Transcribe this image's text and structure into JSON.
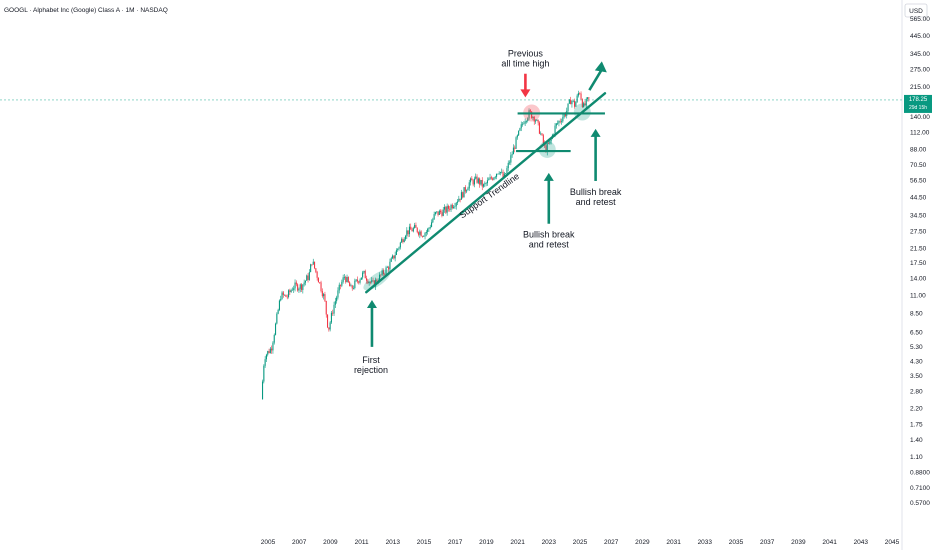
{
  "header": {
    "symbol_title": "GOOGL · Alphabet Inc (Google) Class A · 1M · NASDAQ",
    "currency_label": "USD"
  },
  "price_label": {
    "price": "178.25",
    "countdown": "29d 15h"
  },
  "colors": {
    "up": "#089981",
    "down": "#f23645",
    "annotation_green": "#0f8a70",
    "annotation_red": "#f23645",
    "price_line": "#4fbda8"
  },
  "chart_data": {
    "type": "candlestick",
    "title": "GOOGL · Alphabet Inc (Google) Class A · 1M · NASDAQ",
    "yscale": "log",
    "ylim": [
      0.5,
      1000
    ],
    "xlim": [
      2004.0,
      2046.0
    ],
    "y_ticks": [
      "565.00",
      "445.00",
      "345.00",
      "275.00",
      "215.00",
      "140.00",
      "112.00",
      "88.00",
      "70.50",
      "56.50",
      "44.50",
      "34.50",
      "27.50",
      "21.50",
      "17.50",
      "14.00",
      "11.00",
      "8.50",
      "6.50",
      "5.30",
      "4.30",
      "3.50",
      "2.80",
      "2.20",
      "1.75",
      "1.40",
      "1.10",
      "0.8800",
      "0.7100",
      "0.5700"
    ],
    "x_ticks": [
      "2005",
      "2007",
      "2009",
      "2011",
      "2013",
      "2015",
      "2017",
      "2019",
      "2021",
      "2023",
      "2025",
      "2027",
      "2029",
      "2031",
      "2033",
      "2035",
      "2037",
      "2039",
      "2041",
      "2043",
      "2045"
    ],
    "price_path": [
      [
        2004.65,
        2.5
      ],
      [
        2004.85,
        4.6
      ],
      [
        2005.3,
        5.2
      ],
      [
        2005.6,
        7.5
      ],
      [
        2005.9,
        11.0
      ],
      [
        2006.3,
        10.8
      ],
      [
        2006.7,
        12.5
      ],
      [
        2007.2,
        12.5
      ],
      [
        2007.7,
        14.5
      ],
      [
        2007.9,
        18.0
      ],
      [
        2008.3,
        14.0
      ],
      [
        2008.7,
        10.5
      ],
      [
        2008.95,
        6.7
      ],
      [
        2009.3,
        9.5
      ],
      [
        2009.7,
        12.5
      ],
      [
        2010.0,
        14.5
      ],
      [
        2010.4,
        12.0
      ],
      [
        2010.8,
        13.5
      ],
      [
        2011.2,
        15.0
      ],
      [
        2011.5,
        13.8
      ],
      [
        2011.8,
        12.8
      ],
      [
        2012.3,
        14.5
      ],
      [
        2012.8,
        16.5
      ],
      [
        2013.3,
        20.5
      ],
      [
        2013.9,
        27.0
      ],
      [
        2014.5,
        28.5
      ],
      [
        2015.0,
        26.5
      ],
      [
        2015.3,
        27.5
      ],
      [
        2015.8,
        35.0
      ],
      [
        2016.5,
        37.0
      ],
      [
        2017.0,
        41.0
      ],
      [
        2017.5,
        46.0
      ],
      [
        2018.0,
        55.0
      ],
      [
        2018.5,
        57.0
      ],
      [
        2018.9,
        52.0
      ],
      [
        2019.3,
        57.0
      ],
      [
        2019.9,
        66.0
      ],
      [
        2020.2,
        58.0
      ],
      [
        2020.6,
        76.0
      ],
      [
        2021.0,
        100.0
      ],
      [
        2021.5,
        135.0
      ],
      [
        2021.85,
        148.0
      ],
      [
        2022.2,
        138.0
      ],
      [
        2022.5,
        115.0
      ],
      [
        2022.85,
        88.0
      ],
      [
        2023.15,
        96.0
      ],
      [
        2023.5,
        122.0
      ],
      [
        2023.9,
        138.0
      ],
      [
        2024.2,
        150.0
      ],
      [
        2024.5,
        180.0
      ],
      [
        2024.75,
        165.0
      ],
      [
        2025.05,
        205.0
      ],
      [
        2025.3,
        160.0
      ],
      [
        2025.6,
        178.25
      ]
    ],
    "annotations": [
      {
        "text": "First rejection",
        "lines": [
          "First",
          "rejection"
        ],
        "x": 2011.6,
        "y": 4.2,
        "arrow": "up"
      },
      {
        "text": "Previous all time high",
        "lines": [
          "Previous",
          "all time high"
        ],
        "x": 2021.5,
        "y": 330,
        "arrow": "down"
      },
      {
        "text": "Bullish break and retest",
        "lines": [
          "Bullish break",
          "and retest"
        ],
        "x": 2023.0,
        "y": 25,
        "arrow": "up"
      },
      {
        "text": "Bullish break and retest",
        "lines": [
          "Bullish break",
          "and retest"
        ],
        "x": 2026.0,
        "y": 46,
        "arrow": "up"
      },
      {
        "text": "Support Trendline",
        "lines": [
          "Support Trendline"
        ],
        "x": 2019.3,
        "y": 44,
        "arrow": "none"
      }
    ],
    "trendline": {
      "from": [
        2011.3,
        11.5
      ],
      "to": [
        2026.6,
        196
      ]
    },
    "horizontal_levels": [
      {
        "value": 147,
        "from": 2021.0,
        "to": 2026.6
      },
      {
        "value": 86,
        "from": 2020.9,
        "to": 2024.4
      }
    ],
    "highlight_circles": [
      {
        "x": 2021.9,
        "y": 148,
        "color": "red"
      },
      {
        "x": 2022.9,
        "y": 88,
        "color": "green"
      },
      {
        "x": 2025.15,
        "y": 150,
        "color": "green"
      },
      {
        "x": 2011.6,
        "y": 13.5,
        "color": "green"
      }
    ],
    "last_price": 178.25,
    "legend": "none",
    "grid": false
  }
}
